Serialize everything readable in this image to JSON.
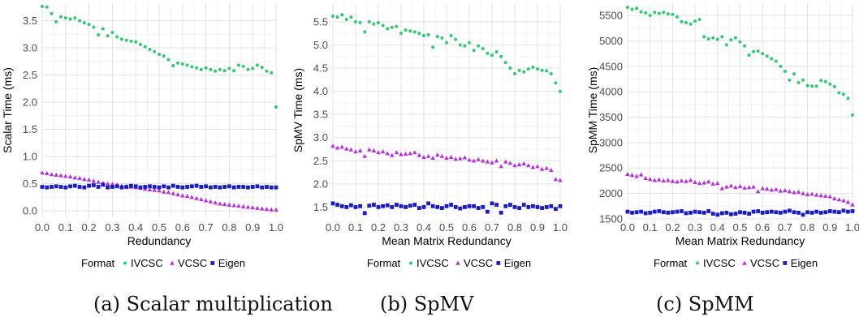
{
  "legend": {
    "title": "Format",
    "items": [
      {
        "label": "IVCSC",
        "color": "#2ecc71",
        "shape": "circle"
      },
      {
        "label": "VCSC",
        "color": "#b82fe0",
        "shape": "triangle"
      },
      {
        "label": "Eigen",
        "color": "#1a1acc",
        "shape": "square"
      }
    ]
  },
  "chart_data": [
    {
      "type": "scatter",
      "caption": "(a) Scalar multiplication",
      "xlabel": "Redundancy",
      "ylabel": "Scalar Time (ms)",
      "xlim": [
        0.0,
        1.0
      ],
      "ylim": [
        -0.12,
        3.82
      ],
      "xticks": [
        0.0,
        0.1,
        0.2,
        0.3,
        0.4,
        0.5,
        0.6,
        0.7,
        0.8,
        0.9,
        1.0
      ],
      "xtick_labels": [
        "0.0",
        "0.1",
        "0.2",
        "0.3",
        "0.4",
        "0.5",
        "0.6",
        "0.7",
        "0.8",
        "0.9",
        "1.0"
      ],
      "yticks": [
        0.0,
        0.5,
        1.0,
        1.5,
        2.0,
        2.5,
        3.0,
        3.5
      ],
      "ytick_labels": [
        "0.0",
        "0.5",
        "1.0",
        "1.5",
        "2.0",
        "2.5",
        "3.0",
        "3.5"
      ],
      "grid": true,
      "x": [
        0.0,
        0.02,
        0.04,
        0.06,
        0.08,
        0.1,
        0.12,
        0.14,
        0.16,
        0.18,
        0.2,
        0.22,
        0.24,
        0.26,
        0.28,
        0.3,
        0.32,
        0.34,
        0.36,
        0.38,
        0.4,
        0.42,
        0.44,
        0.46,
        0.48,
        0.5,
        0.52,
        0.54,
        0.56,
        0.58,
        0.6,
        0.62,
        0.64,
        0.66,
        0.68,
        0.7,
        0.72,
        0.74,
        0.76,
        0.78,
        0.8,
        0.82,
        0.84,
        0.86,
        0.88,
        0.9,
        0.92,
        0.94,
        0.96,
        0.98,
        1.0
      ],
      "series": [
        {
          "name": "IVCSC",
          "values": [
            3.76,
            3.75,
            3.63,
            3.48,
            3.57,
            3.55,
            3.53,
            3.55,
            3.5,
            3.46,
            3.43,
            3.38,
            3.24,
            3.35,
            3.22,
            3.28,
            3.2,
            3.16,
            3.14,
            3.12,
            3.11,
            3.06,
            3.02,
            2.97,
            2.93,
            2.88,
            2.85,
            2.78,
            2.67,
            2.72,
            2.7,
            2.68,
            2.65,
            2.63,
            2.6,
            2.63,
            2.6,
            2.57,
            2.6,
            2.58,
            2.62,
            2.58,
            2.68,
            2.66,
            2.6,
            2.62,
            2.68,
            2.64,
            2.57,
            2.54,
            1.91
          ]
        },
        {
          "name": "VCSC",
          "values": [
            0.7,
            0.69,
            0.67,
            0.66,
            0.65,
            0.64,
            0.63,
            0.61,
            0.6,
            0.58,
            0.57,
            0.55,
            0.53,
            0.51,
            0.5,
            0.49,
            0.48,
            0.46,
            0.45,
            0.44,
            0.43,
            0.42,
            0.4,
            0.39,
            0.38,
            0.37,
            0.35,
            0.34,
            0.32,
            0.3,
            0.28,
            0.27,
            0.25,
            0.23,
            0.21,
            0.19,
            0.17,
            0.15,
            0.13,
            0.12,
            0.11,
            0.1,
            0.09,
            0.08,
            0.07,
            0.06,
            0.05,
            0.04,
            0.03,
            0.02,
            0.02
          ]
        },
        {
          "name": "Eigen",
          "values": [
            0.44,
            0.43,
            0.44,
            0.45,
            0.44,
            0.43,
            0.45,
            0.46,
            0.44,
            0.43,
            0.46,
            0.47,
            0.44,
            0.48,
            0.43,
            0.44,
            0.45,
            0.43,
            0.44,
            0.46,
            0.45,
            0.43,
            0.44,
            0.45,
            0.44,
            0.43,
            0.45,
            0.43,
            0.46,
            0.44,
            0.43,
            0.44,
            0.45,
            0.46,
            0.44,
            0.45,
            0.43,
            0.44,
            0.43,
            0.44,
            0.45,
            0.43,
            0.44,
            0.44,
            0.43,
            0.44,
            0.45,
            0.43,
            0.44,
            0.43,
            0.43
          ]
        }
      ]
    },
    {
      "type": "scatter",
      "caption": "(b) SpMV",
      "xlabel": "Mean Matrix Redundancy",
      "ylabel": "SpMV Time (ms)",
      "xlim": [
        0.0,
        1.0
      ],
      "ylim": [
        1.28,
        5.9
      ],
      "xticks": [
        0.0,
        0.1,
        0.2,
        0.3,
        0.4,
        0.5,
        0.6,
        0.7,
        0.8,
        0.9,
        1.0
      ],
      "xtick_labels": [
        "0.0",
        "0.1",
        "0.2",
        "0.3",
        "0.4",
        "0.5",
        "0.6",
        "0.7",
        "0.8",
        "0.9",
        "1.0"
      ],
      "yticks": [
        1.5,
        2.0,
        2.5,
        3.0,
        3.5,
        4.0,
        4.5,
        5.0,
        5.5
      ],
      "ytick_labels": [
        "1.5",
        "2.0",
        "2.5",
        "3.0",
        "3.5",
        "4.0",
        "4.5",
        "5.0",
        "5.5"
      ],
      "grid": true,
      "x": [
        0.0,
        0.02,
        0.04,
        0.06,
        0.08,
        0.1,
        0.12,
        0.14,
        0.16,
        0.18,
        0.2,
        0.22,
        0.24,
        0.26,
        0.28,
        0.3,
        0.32,
        0.34,
        0.36,
        0.38,
        0.4,
        0.42,
        0.44,
        0.46,
        0.48,
        0.5,
        0.52,
        0.54,
        0.56,
        0.58,
        0.6,
        0.62,
        0.64,
        0.66,
        0.68,
        0.7,
        0.72,
        0.74,
        0.76,
        0.78,
        0.8,
        0.82,
        0.84,
        0.86,
        0.88,
        0.9,
        0.92,
        0.94,
        0.96,
        0.98,
        1.0
      ],
      "series": [
        {
          "name": "IVCSC",
          "values": [
            5.62,
            5.6,
            5.65,
            5.55,
            5.6,
            5.5,
            5.48,
            5.28,
            5.5,
            5.45,
            5.48,
            5.42,
            5.35,
            5.38,
            5.4,
            5.25,
            5.32,
            5.3,
            5.28,
            5.25,
            5.2,
            5.22,
            4.95,
            5.18,
            5.15,
            5.05,
            5.2,
            5.12,
            5.0,
            4.98,
            5.05,
            4.88,
            4.98,
            4.92,
            4.82,
            4.78,
            4.85,
            4.75,
            4.62,
            4.5,
            4.38,
            4.45,
            4.42,
            4.48,
            4.52,
            4.48,
            4.45,
            4.44,
            4.38,
            4.18,
            4.0
          ]
        },
        {
          "name": "VCSC",
          "values": [
            2.82,
            2.78,
            2.8,
            2.76,
            2.74,
            2.7,
            2.72,
            2.6,
            2.74,
            2.72,
            2.68,
            2.7,
            2.66,
            2.62,
            2.68,
            2.64,
            2.65,
            2.66,
            2.68,
            2.62,
            2.58,
            2.6,
            2.56,
            2.63,
            2.6,
            2.56,
            2.58,
            2.54,
            2.55,
            2.57,
            2.52,
            2.5,
            2.53,
            2.5,
            2.48,
            2.46,
            2.5,
            2.38,
            2.48,
            2.45,
            2.4,
            2.42,
            2.44,
            2.4,
            2.36,
            2.38,
            2.32,
            2.34,
            2.3,
            2.1,
            2.08
          ]
        },
        {
          "name": "Eigen",
          "values": [
            1.58,
            1.55,
            1.52,
            1.5,
            1.54,
            1.5,
            1.52,
            1.37,
            1.53,
            1.55,
            1.5,
            1.52,
            1.54,
            1.5,
            1.55,
            1.52,
            1.5,
            1.53,
            1.55,
            1.48,
            1.5,
            1.58,
            1.52,
            1.5,
            1.48,
            1.52,
            1.55,
            1.5,
            1.47,
            1.5,
            1.52,
            1.52,
            1.48,
            1.5,
            1.4,
            1.58,
            1.55,
            1.38,
            1.52,
            1.55,
            1.5,
            1.48,
            1.55,
            1.5,
            1.52,
            1.5,
            1.48,
            1.5,
            1.52,
            1.46,
            1.52
          ]
        }
      ]
    },
    {
      "type": "scatter",
      "caption": "(c) SpMM",
      "xlabel": "Mean Matrix Redundancy",
      "ylabel": "SpMM Time (ms)",
      "xlim": [
        0.0,
        1.0
      ],
      "ylim": [
        1530,
        5740
      ],
      "xticks": [
        0.0,
        0.1,
        0.2,
        0.3,
        0.4,
        0.5,
        0.6,
        0.7,
        0.8,
        0.9,
        1.0
      ],
      "xtick_labels": [
        "0.0",
        "0.1",
        "0.2",
        "0.3",
        "0.4",
        "0.5",
        "0.6",
        "0.7",
        "0.8",
        "0.9",
        "1.0"
      ],
      "yticks": [
        1500,
        2000,
        2500,
        3000,
        3500,
        4000,
        4500,
        5000,
        5500
      ],
      "ytick_labels": [
        "1500",
        "2000",
        "2500",
        "3000",
        "3500",
        "4000",
        "4500",
        "5000",
        "5500"
      ],
      "grid": true,
      "x": [
        0.0,
        0.02,
        0.04,
        0.06,
        0.08,
        0.1,
        0.12,
        0.14,
        0.16,
        0.18,
        0.2,
        0.22,
        0.24,
        0.26,
        0.28,
        0.3,
        0.32,
        0.34,
        0.36,
        0.38,
        0.4,
        0.42,
        0.44,
        0.46,
        0.48,
        0.5,
        0.52,
        0.54,
        0.56,
        0.58,
        0.6,
        0.62,
        0.64,
        0.66,
        0.68,
        0.7,
        0.72,
        0.74,
        0.76,
        0.78,
        0.8,
        0.82,
        0.84,
        0.86,
        0.88,
        0.9,
        0.92,
        0.94,
        0.96,
        0.98,
        1.0
      ],
      "series": [
        {
          "name": "IVCSC",
          "values": [
            5660,
            5620,
            5640,
            5570,
            5550,
            5500,
            5560,
            5540,
            5560,
            5530,
            5520,
            5470,
            5380,
            5360,
            5330,
            5390,
            5420,
            5080,
            5040,
            5060,
            5030,
            5080,
            4920,
            5020,
            5060,
            4980,
            4900,
            4720,
            4790,
            4800,
            4750,
            4700,
            4650,
            4600,
            4500,
            4400,
            4230,
            4350,
            4180,
            4230,
            4120,
            4110,
            4110,
            4220,
            4200,
            4150,
            4100,
            3980,
            3950,
            3870,
            3540
          ]
        },
        {
          "name": "VCSC",
          "values": [
            2380,
            2360,
            2340,
            2370,
            2300,
            2280,
            2260,
            2270,
            2250,
            2260,
            2240,
            2230,
            2250,
            2240,
            2260,
            2220,
            2200,
            2210,
            2230,
            2190,
            2200,
            2100,
            2130,
            2150,
            2120,
            2140,
            2110,
            2120,
            2130,
            2040,
            2100,
            2090,
            2070,
            2080,
            2050,
            2060,
            2040,
            2020,
            2030,
            2000,
            1980,
            1990,
            1970,
            1960,
            1950,
            1940,
            1900,
            1880,
            1860,
            1830,
            1780
          ]
        },
        {
          "name": "Eigen",
          "values": [
            1640,
            1620,
            1630,
            1640,
            1610,
            1620,
            1640,
            1650,
            1630,
            1620,
            1630,
            1640,
            1650,
            1610,
            1620,
            1640,
            1630,
            1620,
            1650,
            1600,
            1580,
            1610,
            1620,
            1590,
            1600,
            1630,
            1620,
            1600,
            1640,
            1650,
            1620,
            1630,
            1640,
            1630,
            1620,
            1640,
            1660,
            1630,
            1620,
            1580,
            1630,
            1620,
            1640,
            1620,
            1630,
            1650,
            1640,
            1630,
            1660,
            1640,
            1650
          ]
        }
      ]
    }
  ]
}
